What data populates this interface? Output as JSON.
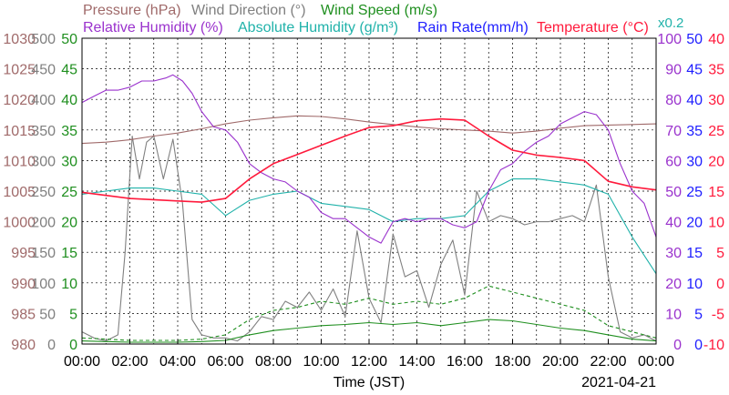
{
  "chart_data": {
    "type": "line",
    "date_label": "2021-04-21",
    "xlabel": "Time (JST)",
    "x_ticks": [
      "00:00",
      "02:00",
      "04:00",
      "06:00",
      "08:00",
      "10:00",
      "12:00",
      "14:00",
      "16:00",
      "18:00",
      "20:00",
      "22:00",
      "00:00"
    ],
    "x_hours": [
      0,
      2,
      4,
      6,
      8,
      10,
      12,
      14,
      16,
      18,
      20,
      22,
      24
    ],
    "grid": true,
    "legend": [
      {
        "label": "Pressure (hPa)",
        "color": "#a06a6a"
      },
      {
        "label": "Wind Direction (°)",
        "color": "#808080"
      },
      {
        "label": "Wind Speed (m/s)",
        "color": "#1f8f1f"
      },
      {
        "label": "Relative Humidity (%)",
        "color": "#9a32cd"
      },
      {
        "label": "Absolute Humidity (g/m³)",
        "color": "#20b2aa"
      },
      {
        "label": "Rain Rate(mm/h)",
        "color": "#1e1eff"
      },
      {
        "label": "Temperature (°C)",
        "color": "#ff1a3c"
      },
      {
        "label": "x0.2",
        "color": "#20b2aa"
      }
    ],
    "axes": {
      "pressure": {
        "ticks": [
          "1030",
          "1025",
          "1020",
          "1015",
          "1010",
          "1005",
          "1000",
          "995",
          "990",
          "985",
          "980"
        ],
        "range": [
          980,
          1030
        ],
        "color": "#a06a6a"
      },
      "wind_direction": {
        "ticks": [
          "500",
          "450",
          "400",
          "350",
          "300",
          "250",
          "200",
          "150",
          "100",
          "50",
          "0"
        ],
        "range": [
          0,
          500
        ],
        "color": "#808080"
      },
      "wind_speed": {
        "ticks": [
          "50",
          "45",
          "40",
          "35",
          "30",
          "25",
          "20",
          "15",
          "10",
          "5",
          "0"
        ],
        "range": [
          0,
          50
        ],
        "color": "#1f8f1f"
      },
      "relative_humidity": {
        "ticks": [
          "100",
          "90",
          "80",
          "70",
          "60",
          "50",
          "40",
          "30",
          "20",
          "10",
          "0"
        ],
        "range": [
          0,
          100
        ],
        "color": "#9a32cd"
      },
      "rain_rate": {
        "ticks": [
          "50",
          "45",
          "40",
          "35",
          "30",
          "25",
          "20",
          "15",
          "10",
          "5",
          "0"
        ],
        "range": [
          0,
          50
        ],
        "color": "#1e1eff"
      },
      "temperature": {
        "ticks": [
          "40",
          "35",
          "30",
          "25",
          "20",
          "15",
          "10",
          "5",
          "0",
          "-5",
          "-10"
        ],
        "range": [
          -10,
          40
        ],
        "color": "#ff1a3c"
      }
    },
    "series": [
      {
        "name": "Pressure (hPa)",
        "color": "#a06a6a",
        "axis": "pressure",
        "x": [
          0,
          1,
          2,
          3,
          4,
          5,
          6,
          7,
          8,
          9,
          10,
          11,
          12,
          13,
          14,
          15,
          16,
          17,
          18,
          19,
          20,
          21,
          22,
          23,
          24
        ],
        "values": [
          1012.8,
          1013,
          1013.4,
          1014,
          1014.5,
          1015.2,
          1016,
          1016.6,
          1017,
          1017.3,
          1017.2,
          1016.8,
          1016.3,
          1015.9,
          1015.5,
          1015.2,
          1015,
          1014.8,
          1014.5,
          1014.8,
          1015.3,
          1015.7,
          1015.8,
          1015.9,
          1016
        ]
      },
      {
        "name": "Wind Direction (°)",
        "color": "#808080",
        "axis": "wind_direction",
        "x": [
          0,
          0.5,
          1,
          1.5,
          1.8,
          2.1,
          2.4,
          2.7,
          3.0,
          3.4,
          3.8,
          4.2,
          4.6,
          5.0,
          5.5,
          6.0,
          6.5,
          7.0,
          7.5,
          8.0,
          8.5,
          9.0,
          9.5,
          10.0,
          10.5,
          11.0,
          11.5,
          12.0,
          12.5,
          13.0,
          13.5,
          14.0,
          14.5,
          15.0,
          15.5,
          16.0,
          16.5,
          17.0,
          17.5,
          18.0,
          18.5,
          19.0,
          19.5,
          20.0,
          20.5,
          21.0,
          21.5,
          22.0,
          22.5,
          23.0,
          23.5,
          24.0
        ],
        "values": [
          20,
          10,
          5,
          15,
          150,
          340,
          270,
          330,
          340,
          270,
          335,
          230,
          40,
          15,
          10,
          10,
          5,
          20,
          45,
          40,
          70,
          60,
          85,
          55,
          90,
          45,
          185,
          75,
          35,
          180,
          110,
          120,
          60,
          130,
          170,
          80,
          250,
          200,
          210,
          205,
          195,
          200,
          200,
          205,
          210,
          200,
          260,
          110,
          20,
          10,
          15,
          5
        ]
      },
      {
        "name": "Wind Speed (m/s)",
        "color": "#1f8f1f",
        "axis": "wind_speed",
        "x": [
          0,
          1,
          2,
          3,
          4,
          5,
          6,
          7,
          8,
          9,
          10,
          11,
          12,
          13,
          14,
          15,
          16,
          17,
          18,
          19,
          20,
          21,
          22,
          23,
          24
        ],
        "values": [
          0.5,
          0.4,
          0.3,
          0.3,
          0.3,
          0.4,
          0.6,
          1.5,
          2.2,
          2.6,
          3,
          3.2,
          3.5,
          3.2,
          3.5,
          3,
          3.5,
          4,
          3.8,
          3.2,
          2.6,
          2.2,
          1.5,
          0.8,
          0.5
        ]
      },
      {
        "name": "Wind Speed (m/s)",
        "color": "#1f8f1f",
        "axis": "wind_speed",
        "x": [
          0,
          1,
          2,
          3,
          4,
          5,
          6,
          7,
          8,
          9,
          10,
          11,
          12,
          13,
          14,
          15,
          16,
          17,
          18,
          19,
          20,
          21,
          22,
          23,
          24
        ],
        "values": [
          1,
          0.8,
          0.6,
          0.6,
          0.6,
          0.8,
          1.5,
          4,
          5.5,
          6,
          7,
          6.5,
          7.5,
          6.5,
          7,
          6.5,
          7.5,
          9.5,
          8.5,
          7.5,
          6.5,
          5.5,
          3,
          2,
          1
        ]
      },
      {
        "name": "Relative Humidity (%)",
        "color": "#9a32cd",
        "axis": "relative_humidity",
        "x": [
          0,
          0.5,
          1,
          1.5,
          2,
          2.5,
          3,
          3.5,
          3.8,
          4.2,
          4.6,
          5,
          5.5,
          6,
          6.5,
          7,
          7.5,
          8,
          8.5,
          9,
          9.5,
          10,
          10.5,
          11,
          11.5,
          12,
          12.5,
          13,
          13.5,
          14,
          14.5,
          15,
          15.5,
          16,
          16.5,
          17,
          17.5,
          18,
          18.5,
          19,
          19.5,
          20,
          20.5,
          21,
          21.5,
          22,
          22.5,
          23,
          23.5,
          24
        ],
        "values": [
          79,
          81,
          83,
          83,
          84,
          86,
          86,
          87,
          88,
          86,
          82,
          76,
          71,
          70,
          66,
          59,
          56,
          54,
          53,
          50,
          48,
          43,
          41,
          41,
          38,
          35,
          33,
          40,
          41,
          40,
          41,
          41,
          39,
          38,
          40,
          50,
          57,
          59,
          63,
          66,
          68,
          72,
          74,
          76,
          75,
          70,
          59,
          50,
          46,
          35
        ]
      },
      {
        "name": "Absolute Humidity (g/m³)",
        "color": "#20b2aa",
        "axis": "relative_humidity",
        "x": [
          0,
          1,
          2,
          3,
          4,
          5,
          6,
          7,
          8,
          9,
          10,
          11,
          12,
          13,
          14,
          15,
          16,
          17,
          18,
          19,
          20,
          21,
          22,
          23,
          24
        ],
        "values": [
          49,
          50,
          51,
          51,
          50,
          49,
          42,
          47,
          49,
          50,
          46,
          45,
          44,
          40,
          41,
          41,
          42,
          50,
          54,
          54,
          53,
          52,
          49,
          35,
          23
        ]
      },
      {
        "name": "Rain Rate(mm/h)",
        "color": "#1e1eff",
        "axis": "rain_rate",
        "x": [
          0,
          24
        ],
        "values": [
          0,
          0
        ]
      },
      {
        "name": "Temperature (°C)",
        "color": "#ff1a3c",
        "axis": "temperature",
        "x": [
          0,
          1,
          2,
          3,
          4,
          5,
          6,
          7,
          8,
          9,
          10,
          11,
          12,
          13,
          14,
          15,
          16,
          17,
          18,
          19,
          20,
          21,
          22,
          23,
          24
        ],
        "values": [
          14.8,
          14.3,
          13.8,
          13.6,
          13.4,
          13.2,
          13.8,
          17,
          19.5,
          21,
          22.5,
          24,
          25.4,
          25.7,
          26.5,
          26.8,
          26.6,
          24,
          21.7,
          20.9,
          20.5,
          20,
          16.6,
          15.7,
          15.2
        ]
      }
    ]
  }
}
